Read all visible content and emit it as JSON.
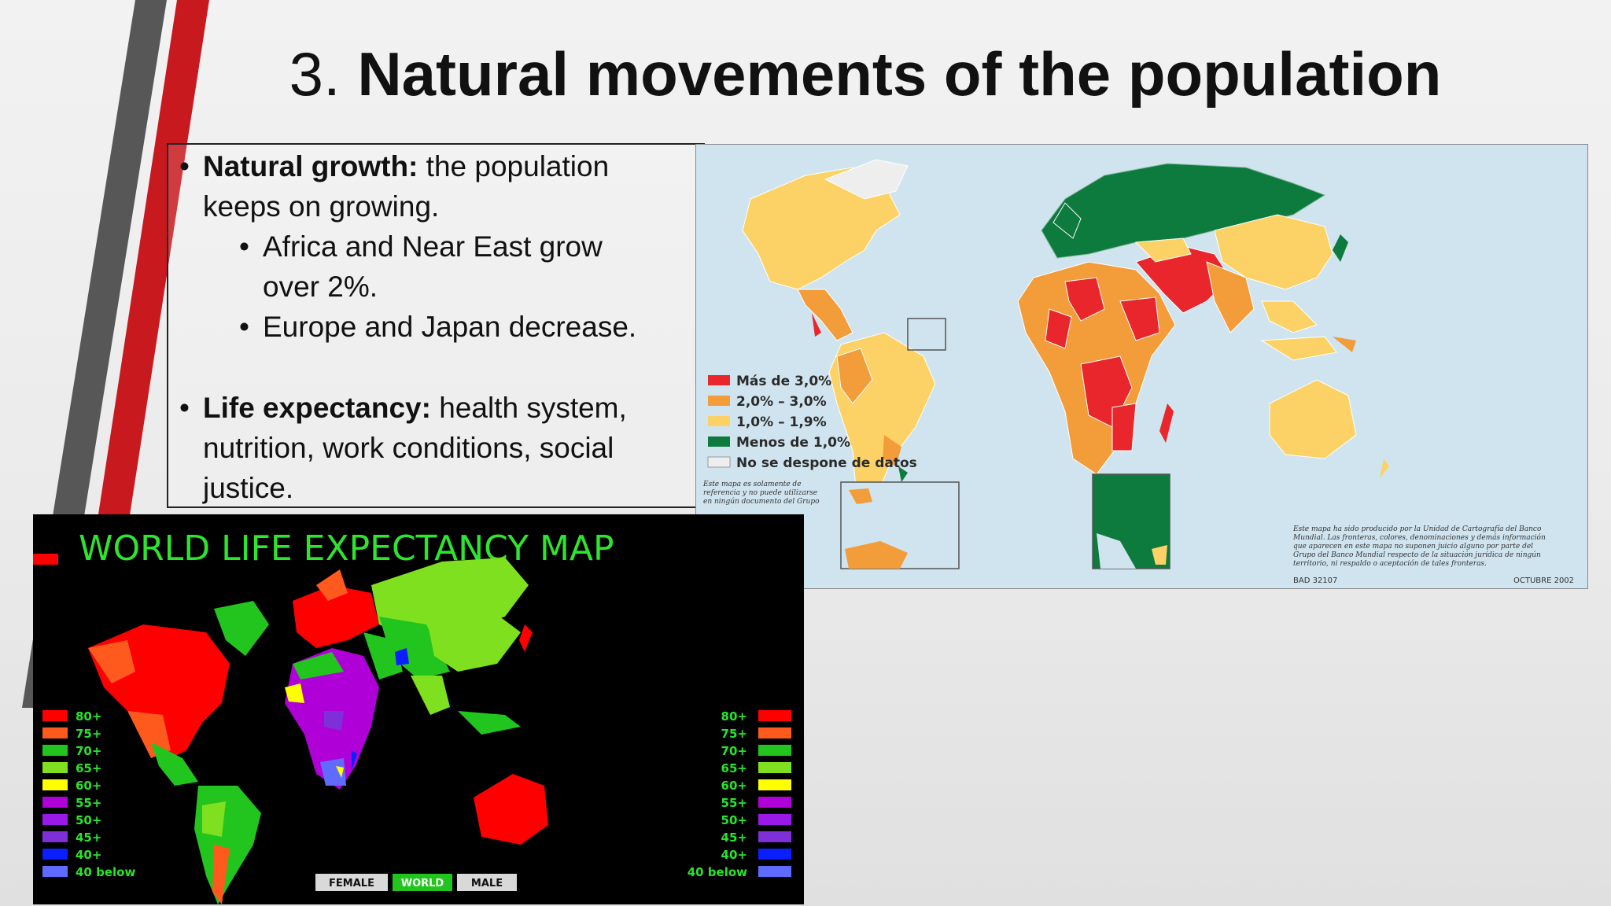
{
  "slide": {
    "title_number": "3.",
    "title_text": "Natural movements of the population"
  },
  "bullets": {
    "b1_bold": "Natural growth:",
    "b1_rest": " the population",
    "b1_line2": "keeps on growing.",
    "s1_line1": "Africa and Near East grow",
    "s1_line2": "over 2%.",
    "s2": "Europe and Japan decrease.",
    "b2_bold": "Life expectancy:",
    "b2_rest": " health system,",
    "b2_line2": "nutrition, work conditions, social",
    "b2_line3": "justice."
  },
  "growth_map": {
    "legend": [
      {
        "label": "Más de 3,0%",
        "color": "#e8262c"
      },
      {
        "label": "2,0% – 3,0%",
        "color": "#f39c3a"
      },
      {
        "label": "1,0% – 1,9%",
        "color": "#fcd266"
      },
      {
        "label": "Menos de 1,0%",
        "color": "#0d7a3e"
      },
      {
        "label": "No se despone de datos",
        "color": "#eeeeee"
      }
    ],
    "note_left": [
      "Este mapa es solamente de",
      "referencia y no puede utilizarse",
      "en ningún documento del Grupo"
    ],
    "note_right": [
      "Este mapa ha sido producido por la Unidad de Cartografía del Banco",
      "Mundial. Las fronteras, colores, denominaciones y demás información",
      "que aparecen en este mapa no suponen juicio alguno por parte del",
      "Grupo del Banco Mundial respecto de la situación jurídica de ningún",
      "territorio, ni respaldo o aceptación de tales fronteras."
    ],
    "code": "BAD 32107",
    "date": "OCTUBRE 2002",
    "colors": {
      "ocean": "#cfe4ee"
    }
  },
  "life_map": {
    "title": "WORLD LIFE EXPECTANCY MAP",
    "legend": [
      {
        "label": "80+",
        "color": "#ff0000"
      },
      {
        "label": "75+",
        "color": "#ff5a1e"
      },
      {
        "label": "70+",
        "color": "#22c51e"
      },
      {
        "label": "65+",
        "color": "#7fe01f"
      },
      {
        "label": "60+",
        "color": "#ffff00"
      },
      {
        "label": "55+",
        "color": "#b000d8"
      },
      {
        "label": "50+",
        "color": "#9a19e8"
      },
      {
        "label": "45+",
        "color": "#7e2fd8"
      },
      {
        "label": "40+",
        "color": "#0a1eff"
      },
      {
        "label": "40 below",
        "color": "#5f6bff"
      }
    ],
    "buttons": [
      "FEMALE",
      "WORLD",
      "MALE"
    ]
  }
}
